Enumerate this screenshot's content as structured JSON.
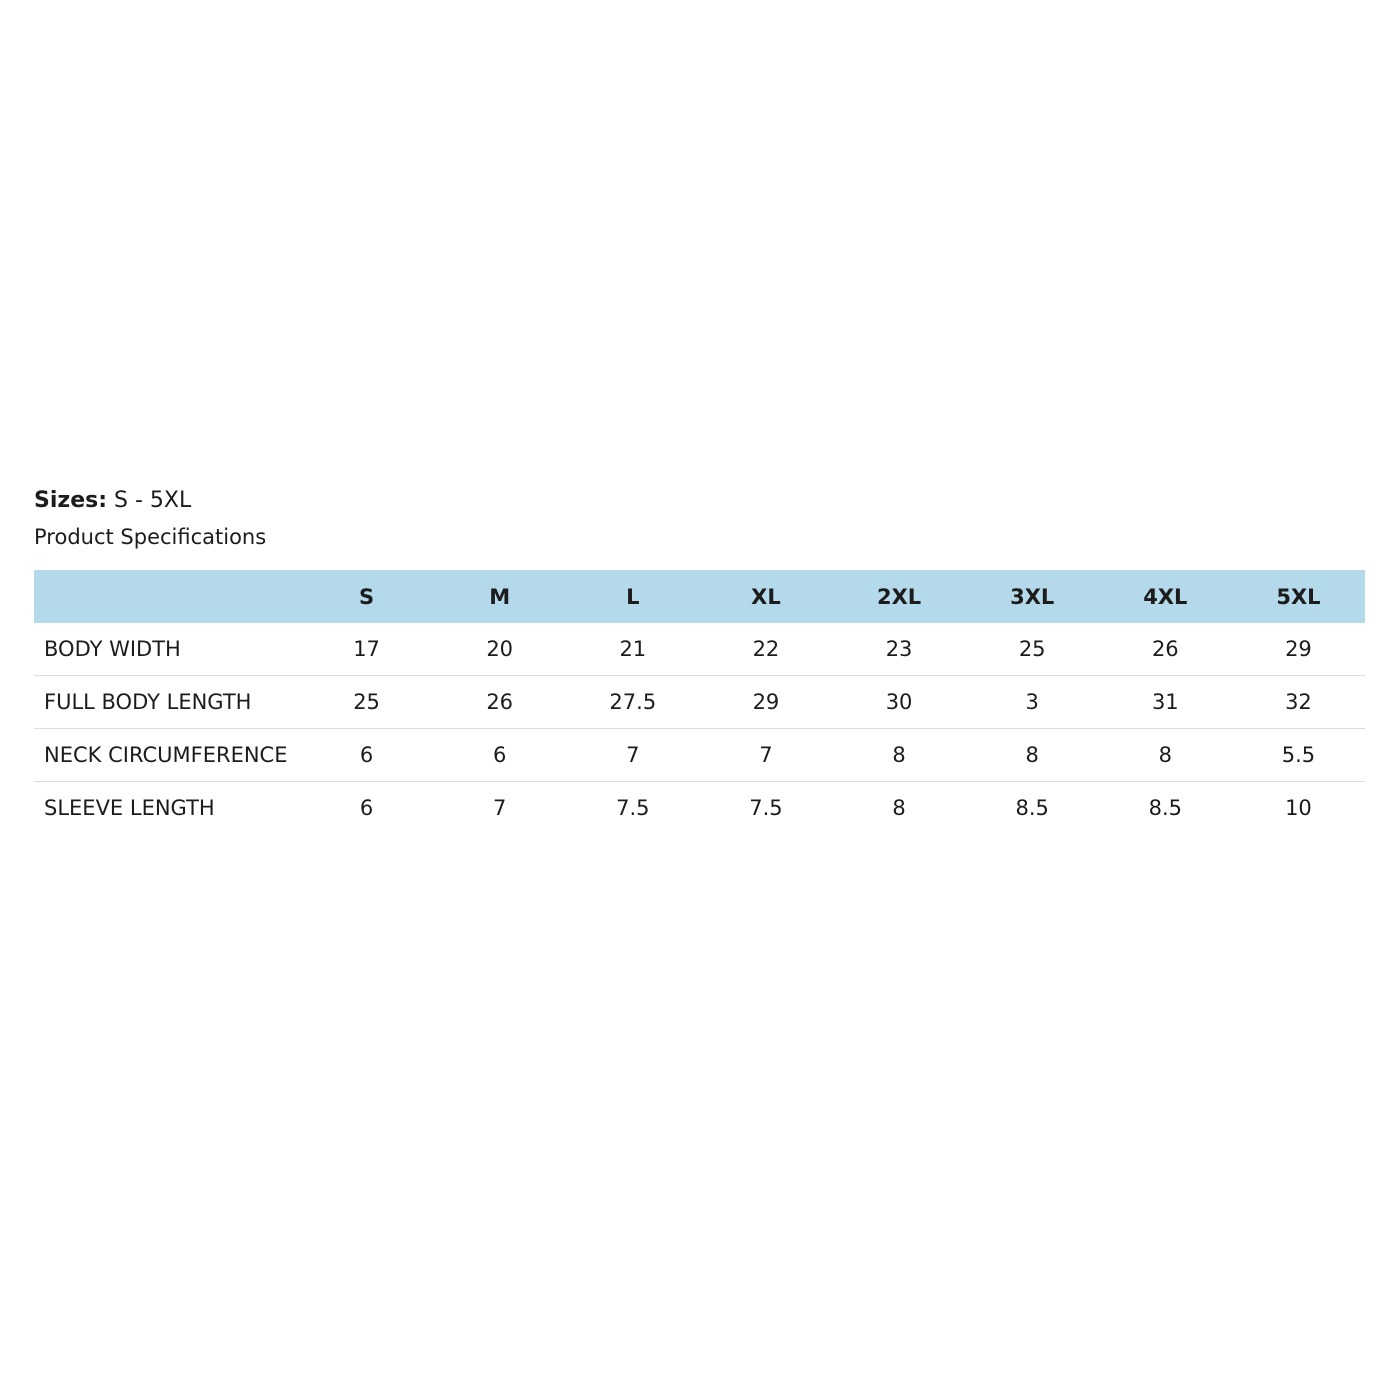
{
  "header": {
    "sizes_label": "Sizes:",
    "sizes_value": "S - 5XL",
    "subtitle": "Product Specifications"
  },
  "table": {
    "columns": [
      "S",
      "M",
      "L",
      "XL",
      "2XL",
      "3XL",
      "4XL",
      "5XL"
    ],
    "rows": [
      [
        "BODY WIDTH",
        "17",
        "20",
        "21",
        "22",
        "23",
        "25",
        "26",
        "29"
      ],
      [
        "FULL BODY LENGTH",
        "25",
        "26",
        "27.5",
        "29",
        "30",
        "3",
        "31",
        "32"
      ],
      [
        "NECK CIRCUMFERENCE",
        "6",
        "6",
        "7",
        "7",
        "8",
        "8",
        "8",
        "5.5"
      ],
      [
        "SLEEVE LENGTH",
        "6",
        "7",
        "7.5",
        "7.5",
        "8",
        "8.5",
        "8.5",
        "10"
      ]
    ]
  }
}
